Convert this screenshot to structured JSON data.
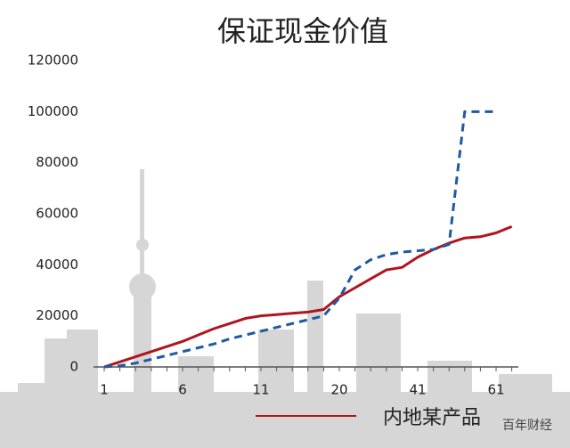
{
  "chart_data": {
    "type": "line",
    "title": "保证现金价值",
    "categories": [
      "1",
      null,
      null,
      null,
      null,
      "6",
      null,
      null,
      null,
      null,
      "11",
      null,
      null,
      null,
      null,
      "20",
      null,
      null,
      null,
      null,
      "41",
      null,
      null,
      null,
      null,
      "61",
      null
    ],
    "series": [
      {
        "name": "内地某产品",
        "color": "#b0151f",
        "dashed": false,
        "values": [
          0,
          2000,
          4000,
          6000,
          8000,
          10000,
          12500,
          15000,
          17000,
          19000,
          20000,
          20500,
          21000,
          21500,
          22500,
          27500,
          31000,
          34500,
          38000,
          39000,
          43000,
          46000,
          48500,
          50500,
          51000,
          52500,
          55000
        ]
      },
      {
        "color": "#1f5aa0",
        "dashed": true,
        "values": [
          0,
          500,
          1500,
          3000,
          4500,
          6000,
          7500,
          9000,
          11000,
          12500,
          14000,
          15500,
          17000,
          18500,
          20000,
          27000,
          38000,
          42000,
          44000,
          45000,
          45500,
          46000,
          48000,
          100000,
          100000,
          100000,
          null
        ]
      }
    ],
    "ylim": [
      0,
      120000
    ],
    "yticks": [
      0,
      20000,
      40000,
      60000,
      80000,
      100000,
      120000
    ],
    "watermark": "百年财经"
  }
}
